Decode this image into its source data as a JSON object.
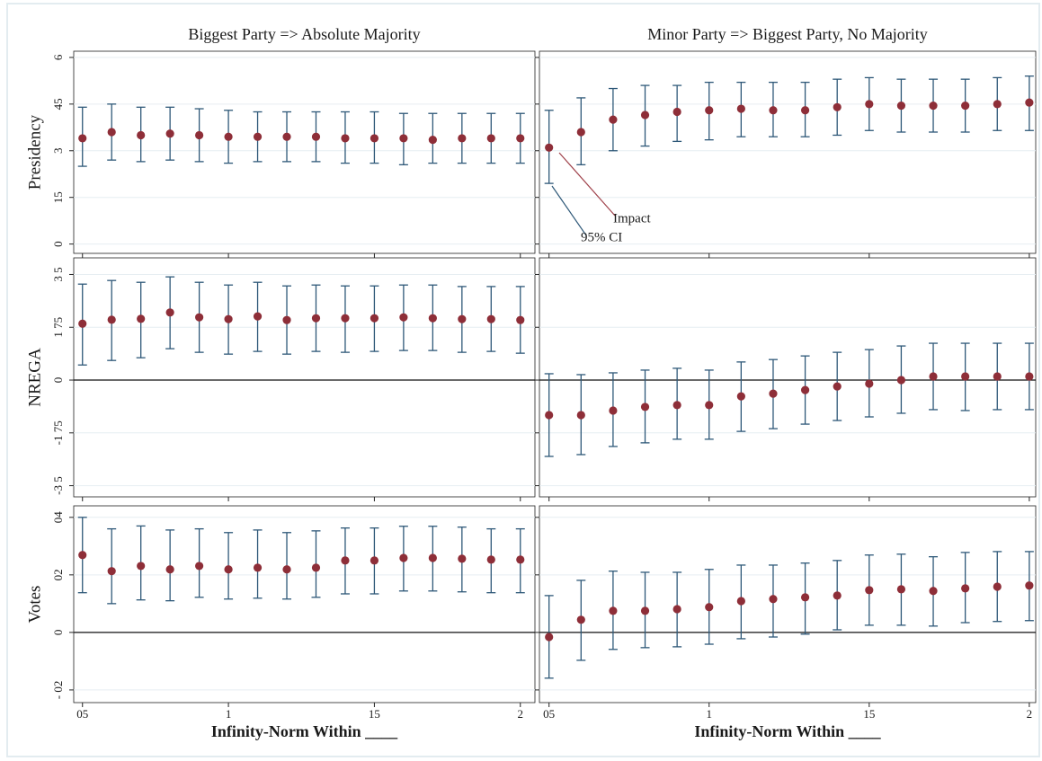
{
  "chart_data": [
    {
      "type": "errorbar",
      "title": "Biggest Party => Absolute Majority",
      "ylabel": "Presidency",
      "x": [
        0.5,
        0.6,
        0.7,
        0.8,
        0.9,
        1.0,
        1.1,
        1.2,
        1.3,
        1.4,
        1.5,
        1.6,
        1.7,
        1.8,
        1.9,
        2.0
      ],
      "values": [
        0.34,
        0.36,
        0.35,
        0.355,
        0.35,
        0.345,
        0.345,
        0.345,
        0.345,
        0.34,
        0.34,
        0.34,
        0.335,
        0.34,
        0.34,
        0.34
      ],
      "ci_low": [
        0.25,
        0.27,
        0.265,
        0.27,
        0.265,
        0.26,
        0.265,
        0.265,
        0.265,
        0.26,
        0.26,
        0.255,
        0.26,
        0.26,
        0.26,
        0.26
      ],
      "ci_high": [
        0.44,
        0.45,
        0.44,
        0.44,
        0.435,
        0.43,
        0.425,
        0.425,
        0.425,
        0.425,
        0.425,
        0.42,
        0.42,
        0.42,
        0.42,
        0.42
      ],
      "xlim": [
        0.47,
        2.05
      ],
      "xticks": [
        0.5,
        1,
        1.5,
        2
      ],
      "ylim": [
        -0.03,
        0.62
      ],
      "yticks": [
        0,
        {
          "value": 0.15,
          "label": "15"
        },
        {
          "value": 0.3,
          "label": "3"
        },
        {
          "value": 0.45,
          "label": "45"
        },
        {
          "value": 0.6,
          "label": "6"
        }
      ],
      "grid": true,
      "zero_line": false,
      "point_color": "#8e2e38",
      "ci_color": "#2e5878"
    },
    {
      "type": "errorbar",
      "title": "Minor Party => Biggest Party, No Majority",
      "x": [
        0.5,
        0.6,
        0.7,
        0.8,
        0.9,
        1.0,
        1.1,
        1.2,
        1.3,
        1.4,
        1.5,
        1.6,
        1.7,
        1.8,
        1.9,
        2.0
      ],
      "values": [
        0.31,
        0.36,
        0.4,
        0.415,
        0.425,
        0.43,
        0.435,
        0.43,
        0.43,
        0.44,
        0.45,
        0.445,
        0.445,
        0.445,
        0.45,
        0.455
      ],
      "ci_low": [
        0.195,
        0.255,
        0.3,
        0.315,
        0.33,
        0.335,
        0.345,
        0.345,
        0.345,
        0.35,
        0.365,
        0.36,
        0.36,
        0.36,
        0.365,
        0.365
      ],
      "ci_high": [
        0.43,
        0.47,
        0.5,
        0.51,
        0.51,
        0.52,
        0.52,
        0.52,
        0.52,
        0.53,
        0.535,
        0.53,
        0.53,
        0.53,
        0.535,
        0.54
      ],
      "xlim": [
        0.47,
        2.02
      ],
      "xticks": [
        0.5,
        1,
        1.5,
        2
      ],
      "ylim": [
        -0.03,
        0.62
      ],
      "yticks": [
        0,
        0.15,
        0.3,
        0.45,
        0.6
      ],
      "grid": true,
      "zero_line": false,
      "point_color": "#8e2e38",
      "ci_color": "#2e5878",
      "annotations": [
        {
          "text": "Impact",
          "color": "#a0434c"
        },
        {
          "text": "95% CI",
          "color": "#2e5878"
        }
      ]
    },
    {
      "type": "errorbar",
      "ylabel": "NREGA",
      "x": [
        0.5,
        0.6,
        0.7,
        0.8,
        0.9,
        1.0,
        1.1,
        1.2,
        1.3,
        1.4,
        1.5,
        1.6,
        1.7,
        1.8,
        1.9,
        2.0
      ],
      "values": [
        1.87,
        2.0,
        2.03,
        2.24,
        2.08,
        2.02,
        2.11,
        1.99,
        2.05,
        2.05,
        2.05,
        2.08,
        2.05,
        2.02,
        2.02,
        1.99
      ],
      "ci_low": [
        0.5,
        0.65,
        0.74,
        1.04,
        0.92,
        0.86,
        0.95,
        0.86,
        0.95,
        0.92,
        0.95,
        0.98,
        0.98,
        0.92,
        0.95,
        0.89
      ],
      "ci_high": [
        3.18,
        3.3,
        3.24,
        3.42,
        3.24,
        3.15,
        3.24,
        3.12,
        3.15,
        3.12,
        3.12,
        3.15,
        3.15,
        3.1,
        3.1,
        3.1
      ],
      "xlim": [
        0.47,
        2.05
      ],
      "xticks": [
        0.5,
        1,
        1.5,
        2
      ],
      "ylim": [
        -3.87,
        4.05
      ],
      "yticks": [
        {
          "value": -3.5,
          "label": "-3 5"
        },
        {
          "value": -1.75,
          "label": "-1 75"
        },
        0,
        {
          "value": 1.75,
          "label": "1 75"
        },
        {
          "value": 3.5,
          "label": "3 5"
        }
      ],
      "grid": true,
      "zero_line": true,
      "point_color": "#8e2e38",
      "ci_color": "#2e5878"
    },
    {
      "type": "errorbar",
      "x": [
        0.5,
        0.6,
        0.7,
        0.8,
        0.9,
        1.0,
        1.1,
        1.2,
        1.3,
        1.4,
        1.5,
        1.6,
        1.7,
        1.8,
        1.9,
        2.0
      ],
      "values": [
        -1.16,
        -1.16,
        -1.01,
        -0.89,
        -0.83,
        -0.83,
        -0.54,
        -0.45,
        -0.33,
        -0.21,
        -0.12,
        0,
        0.12,
        0.12,
        0.12,
        0.12
      ],
      "ci_low": [
        -2.53,
        -2.47,
        -2.2,
        -2.08,
        -1.96,
        -1.96,
        -1.7,
        -1.61,
        -1.46,
        -1.34,
        -1.22,
        -1.1,
        -0.98,
        -1.01,
        -0.98,
        -0.98
      ],
      "ci_high": [
        0.21,
        0.18,
        0.24,
        0.33,
        0.39,
        0.33,
        0.6,
        0.68,
        0.8,
        0.92,
        1.01,
        1.13,
        1.22,
        1.22,
        1.22,
        1.22
      ],
      "xlim": [
        0.47,
        2.02
      ],
      "xticks": [
        0.5,
        1,
        1.5,
        2
      ],
      "ylim": [
        -3.87,
        4.05
      ],
      "yticks": [
        -3.5,
        -1.75,
        0,
        1.75,
        3.5
      ],
      "grid": true,
      "zero_line": true,
      "point_color": "#8e2e38",
      "ci_color": "#2e5878"
    },
    {
      "type": "errorbar",
      "ylabel": "Votes",
      "xlabel": "Infinity-Norm Within ____",
      "x": [
        0.5,
        0.6,
        0.7,
        0.8,
        0.9,
        1.0,
        1.1,
        1.2,
        1.3,
        1.4,
        1.5,
        1.6,
        1.7,
        1.8,
        1.9,
        2.0
      ],
      "values": [
        0.0269,
        0.0213,
        0.0231,
        0.0219,
        0.0231,
        0.0219,
        0.0225,
        0.0219,
        0.0225,
        0.025,
        0.025,
        0.0259,
        0.0259,
        0.0256,
        0.0253,
        0.0253
      ],
      "ci_low": [
        0.0138,
        0.01,
        0.0113,
        0.011,
        0.0122,
        0.0116,
        0.0119,
        0.0116,
        0.0122,
        0.0134,
        0.0134,
        0.0144,
        0.0144,
        0.0141,
        0.0138,
        0.0138
      ],
      "ci_high": [
        0.04,
        0.036,
        0.037,
        0.0356,
        0.036,
        0.0347,
        0.0356,
        0.0347,
        0.0353,
        0.0363,
        0.0363,
        0.0369,
        0.0369,
        0.0366,
        0.036,
        0.036
      ],
      "xlim": [
        0.47,
        2.05
      ],
      "xticks": [
        {
          "value": 0.5,
          "label": "05"
        },
        1,
        {
          "value": 1.5,
          "label": "15"
        },
        2
      ],
      "ylim": [
        -0.0244,
        0.044
      ],
      "yticks": [
        {
          "value": -0.02,
          "label": "- 02"
        },
        0,
        {
          "value": 0.02,
          "label": "02"
        },
        {
          "value": 0.04,
          "label": "04"
        }
      ],
      "grid": true,
      "zero_line": true,
      "point_color": "#8e2e38",
      "ci_color": "#2e5878"
    },
    {
      "type": "errorbar",
      "xlabel": "Infinity-Norm Within ____",
      "x": [
        0.5,
        0.6,
        0.7,
        0.8,
        0.9,
        1.0,
        1.1,
        1.2,
        1.3,
        1.4,
        1.5,
        1.6,
        1.7,
        1.8,
        1.9,
        2.0
      ],
      "values": [
        -0.0016,
        0.0044,
        0.0075,
        0.0075,
        0.0081,
        0.0088,
        0.0109,
        0.0116,
        0.0122,
        0.0128,
        0.0147,
        0.015,
        0.0144,
        0.0153,
        0.0159,
        0.0163
      ],
      "ci_low": [
        -0.0159,
        -0.0097,
        -0.0059,
        -0.0053,
        -0.005,
        -0.0041,
        -0.0022,
        -0.0016,
        -0.0006,
        0.0009,
        0.0025,
        0.0025,
        0.0022,
        0.0034,
        0.0038,
        0.0041
      ],
      "ci_high": [
        0.0128,
        0.0181,
        0.0213,
        0.0209,
        0.0209,
        0.0219,
        0.0234,
        0.0234,
        0.0241,
        0.025,
        0.0269,
        0.0272,
        0.0263,
        0.0278,
        0.0281,
        0.0281
      ],
      "xlim": [
        0.47,
        2.02
      ],
      "xticks": [
        {
          "value": 0.5,
          "label": "05"
        },
        1,
        {
          "value": 1.5,
          "label": "15"
        },
        2
      ],
      "ylim": [
        -0.0244,
        0.044
      ],
      "yticks": [
        -0.02,
        0,
        0.02,
        0.04
      ],
      "grid": true,
      "zero_line": true,
      "point_color": "#8e2e38",
      "ci_color": "#2e5878"
    }
  ]
}
